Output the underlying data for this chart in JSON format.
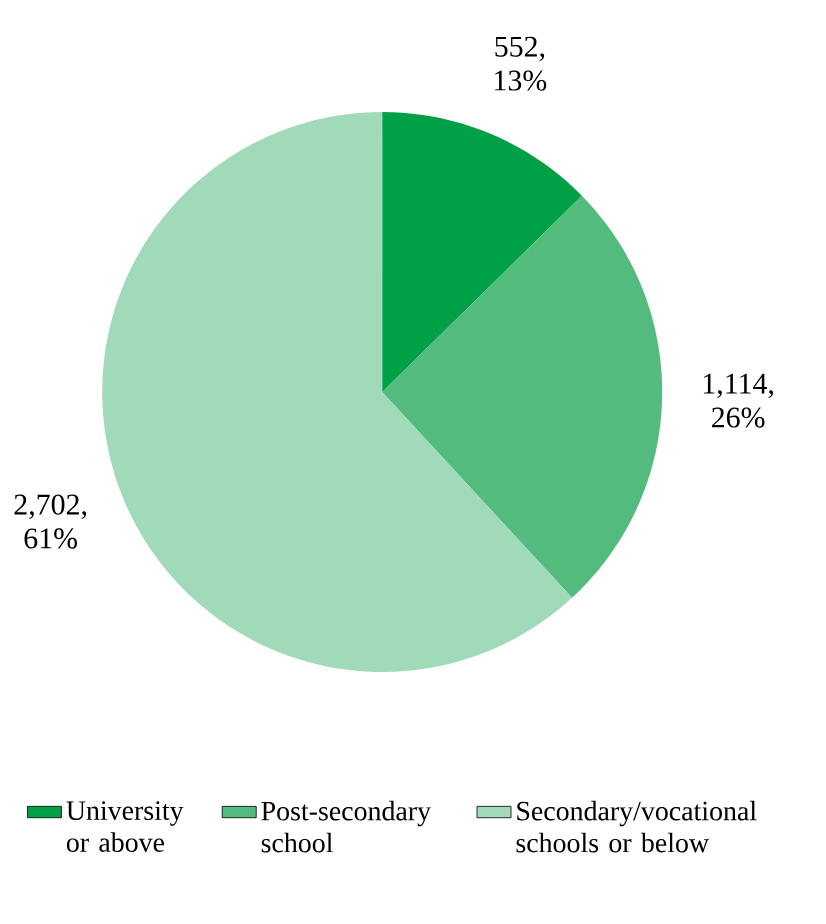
{
  "chart_data": {
    "type": "pie",
    "categories": [
      "University or above",
      "Post-secondary school",
      "Secondary/vocational schools or below"
    ],
    "values": [
      552,
      1114,
      2702
    ],
    "colors": [
      "#00a046",
      "#52bb7d",
      "#a0dab8"
    ],
    "value_labels": [
      "552, 13%",
      "1,114, 26%",
      "2,702, 61%"
    ],
    "legend": "bottom"
  }
}
